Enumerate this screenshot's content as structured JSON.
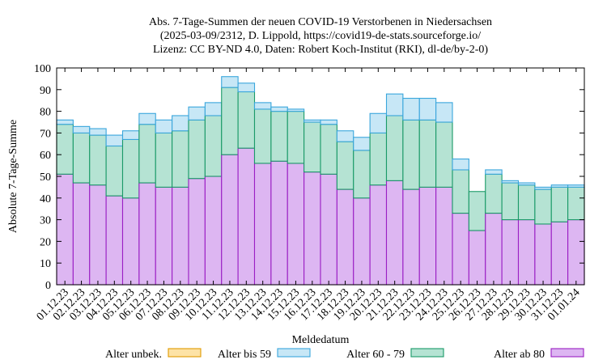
{
  "chart_data": {
    "type": "bar",
    "stacked": true,
    "title_lines": [
      "Abs. 7-Tage-Summen der neuen COVID-19 Verstorbenen in Niedersachsen",
      "(2025-03-09/2312, D. Lippold, https://covid19-de-stats.sourceforge.io/",
      "Lizenz: CC BY-ND 4.0, Daten: Robert Koch-Institut (RKI), dl-de/by-2-0)"
    ],
    "xlabel": "Meldedatum",
    "ylabel": "Absolute 7-Tage-Summe",
    "ylim": [
      0,
      100
    ],
    "yticks": [
      0,
      10,
      20,
      30,
      40,
      50,
      60,
      70,
      80,
      90,
      100
    ],
    "grid": false,
    "legend_position": "bottom",
    "categories": [
      "01.12.23",
      "02.12.23",
      "03.12.23",
      "04.12.23",
      "05.12.23",
      "06.12.23",
      "07.12.23",
      "08.12.23",
      "09.12.23",
      "10.12.23",
      "11.12.23",
      "12.12.23",
      "13.12.23",
      "14.12.23",
      "15.12.23",
      "16.12.23",
      "17.12.23",
      "18.12.23",
      "19.12.23",
      "20.12.23",
      "21.12.23",
      "22.12.23",
      "23.12.23",
      "24.12.23",
      "25.12.23",
      "26.12.23",
      "27.12.23",
      "28.12.23",
      "29.12.23",
      "30.12.23",
      "31.12.23",
      "01.01.24"
    ],
    "series": [
      {
        "name": "Alter unbek.",
        "fill": "#fde3a6",
        "stroke": "#e09a00",
        "values": [
          0,
          0,
          0,
          0,
          0,
          0,
          0,
          0,
          0,
          0,
          0,
          0,
          0,
          0,
          0,
          0,
          0,
          0,
          0,
          0,
          0,
          0,
          0,
          0,
          0,
          0,
          0,
          0,
          0,
          0,
          0,
          0
        ]
      },
      {
        "name": "Alter ab 80",
        "fill": "#ddb6f2",
        "stroke": "#9b1fc4",
        "values": [
          51,
          47,
          46,
          41,
          40,
          47,
          45,
          45,
          49,
          50,
          60,
          63,
          56,
          57,
          56,
          52,
          51,
          44,
          40,
          46,
          48,
          44,
          45,
          45,
          33,
          25,
          33,
          30,
          30,
          28,
          29,
          30
        ]
      },
      {
        "name": "Alter 60 - 79",
        "fill": "#b5e3d3",
        "stroke": "#1a9a68",
        "values": [
          23,
          23,
          23,
          23,
          27,
          27,
          25,
          26,
          27,
          28,
          31,
          26,
          25,
          23,
          24,
          23,
          23,
          22,
          22,
          24,
          30,
          32,
          31,
          30,
          20,
          18,
          18,
          17,
          16,
          16,
          16,
          15
        ]
      },
      {
        "name": "Alter bis 59",
        "fill": "#c7e7f6",
        "stroke": "#3aa6dc",
        "values": [
          2,
          3,
          3,
          5,
          4,
          5,
          6,
          7,
          6,
          6,
          5,
          4,
          3,
          2,
          1,
          1,
          2,
          5,
          6,
          9,
          10,
          10,
          10,
          9,
          5,
          0,
          2,
          1,
          1,
          1,
          1,
          1
        ]
      }
    ],
    "legend_order": [
      "Alter unbek.",
      "Alter bis 59",
      "Alter 60 - 79",
      "Alter ab 80"
    ]
  }
}
